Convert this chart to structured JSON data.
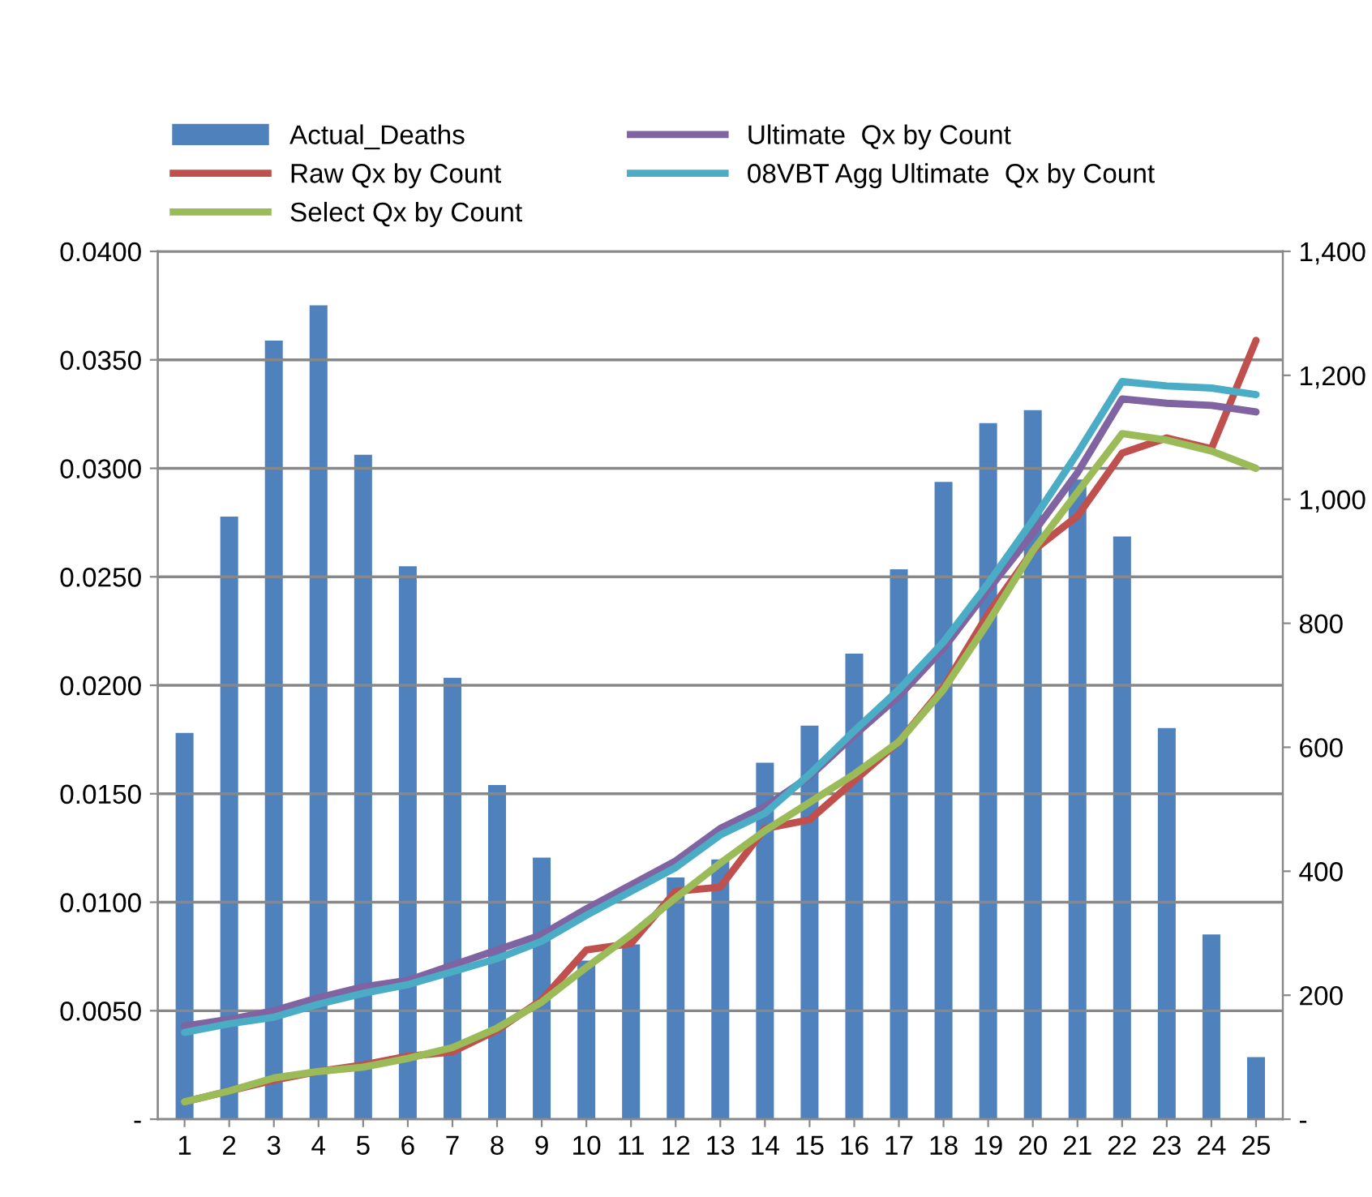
{
  "chart_data": {
    "type": "line",
    "categories": [
      "1",
      "2",
      "3",
      "4",
      "5",
      "6",
      "7",
      "8",
      "9",
      "10",
      "11",
      "12",
      "13",
      "14",
      "15",
      "16",
      "17",
      "18",
      "19",
      "20",
      "21",
      "22",
      "23",
      "24",
      "25"
    ],
    "series": [
      {
        "name": "Actual_Deaths",
        "type": "bar",
        "axis": "y2",
        "color": "#4f81bd",
        "values": [
          623,
          972,
          1256,
          1313,
          1072,
          892,
          712,
          539,
          422,
          256,
          282,
          390,
          419,
          575,
          635,
          751,
          887,
          1028,
          1123,
          1144,
          1032,
          940,
          631,
          298,
          100
        ]
      },
      {
        "name": "Raw Qx by Count",
        "color": "#c0504d",
        "values": [
          0.0008,
          0.0013,
          0.0018,
          0.0022,
          0.0025,
          0.0029,
          0.0031,
          0.0041,
          0.0055,
          0.0078,
          0.0081,
          0.0105,
          0.0107,
          0.0134,
          0.0138,
          0.0156,
          0.0174,
          0.0199,
          0.0233,
          0.0262,
          0.0278,
          0.0307,
          0.0314,
          0.0309,
          0.0359
        ]
      },
      {
        "name": "Select Qx by Count",
        "color": "#9bbb59",
        "values": [
          0.0008,
          0.0013,
          0.0019,
          0.0022,
          0.0024,
          0.0028,
          0.0033,
          0.0042,
          0.0054,
          0.007,
          0.0085,
          0.0102,
          0.0118,
          0.0133,
          0.0146,
          0.0159,
          0.0174,
          0.0198,
          0.0229,
          0.0262,
          0.0289,
          0.0316,
          0.0313,
          0.0308,
          0.03
        ]
      },
      {
        "name": "Ultimate  Qx by Count",
        "color": "#8064a2",
        "values": [
          0.0043,
          0.0046,
          0.005,
          0.0056,
          0.0061,
          0.0064,
          0.0071,
          0.0078,
          0.0085,
          0.0097,
          0.0108,
          0.0119,
          0.0134,
          0.0144,
          0.0158,
          0.0177,
          0.0195,
          0.0217,
          0.0244,
          0.027,
          0.0298,
          0.0332,
          0.033,
          0.0329,
          0.0326
        ]
      },
      {
        "name": "08VBT Agg Ultimate  Qx by Count",
        "color": "#4bacc6",
        "values": [
          0.004,
          0.0044,
          0.0047,
          0.0053,
          0.0058,
          0.0062,
          0.0068,
          0.0074,
          0.0082,
          0.0094,
          0.0105,
          0.0116,
          0.0131,
          0.0141,
          0.0159,
          0.0179,
          0.0198,
          0.022,
          0.0247,
          0.0276,
          0.0307,
          0.034,
          0.0338,
          0.0337,
          0.0334
        ]
      }
    ],
    "ylim": [
      0,
      0.04
    ],
    "yticks": [
      {
        "value": 0,
        "label": "-"
      },
      {
        "value": 0.005,
        "label": "0.0050"
      },
      {
        "value": 0.01,
        "label": "0.0100"
      },
      {
        "value": 0.015,
        "label": "0.0150"
      },
      {
        "value": 0.02,
        "label": "0.0200"
      },
      {
        "value": 0.025,
        "label": "0.0250"
      },
      {
        "value": 0.03,
        "label": "0.0300"
      },
      {
        "value": 0.035,
        "label": "0.0350"
      },
      {
        "value": 0.04,
        "label": "0.0400"
      }
    ],
    "y2lim": [
      0,
      1400
    ],
    "y2ticks": [
      {
        "value": 0,
        "label": "-"
      },
      200,
      400,
      600,
      800,
      {
        "value": 1000,
        "label": "1,000"
      },
      {
        "value": 1200,
        "label": "1,200"
      },
      {
        "value": 1400,
        "label": "1,400"
      }
    ],
    "grid": "y",
    "legend": "top",
    "marker": "none",
    "line_style": "solid"
  }
}
